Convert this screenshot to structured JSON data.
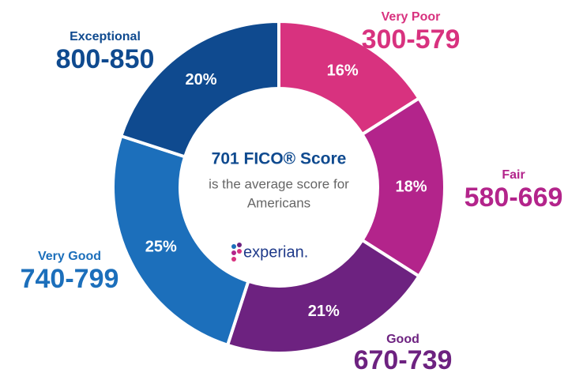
{
  "chart_data": {
    "type": "donut",
    "categories": [
      "Very Poor",
      "Fair",
      "Good",
      "Very Good",
      "Exceptional"
    ],
    "ranges": [
      "300-579",
      "580-669",
      "670-739",
      "740-799",
      "800-850"
    ],
    "values": [
      16,
      18,
      21,
      25,
      20
    ],
    "value_labels": [
      "16%",
      "18%",
      "21%",
      "25%",
      "20%"
    ],
    "colors": [
      "#d8327f",
      "#b3248b",
      "#6d2280",
      "#1c6fbb",
      "#0f4a8f"
    ],
    "center_title": "701 FICO® Score",
    "center_text": [
      "is the average score for",
      "Americans"
    ],
    "logo": "experian."
  }
}
